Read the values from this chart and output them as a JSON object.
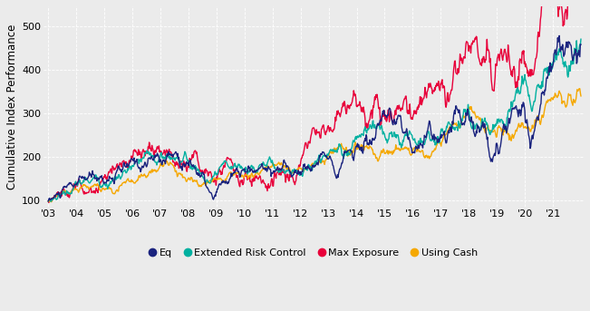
{
  "ylabel": "Cumulative Index Performance",
  "ylim": [
    85,
    545
  ],
  "xlim": [
    2002.83,
    2022.1
  ],
  "xtick_years": [
    "'03",
    "'04",
    "'05",
    "'06",
    "'07",
    "'08",
    "'09",
    "'10",
    "'11",
    "'12",
    "'13",
    "'14",
    "'15",
    "'16",
    "'17",
    "'18",
    "'19",
    "'20",
    "'21"
  ],
  "xtick_positions": [
    2003,
    2004,
    2005,
    2006,
    2007,
    2008,
    2009,
    2010,
    2011,
    2012,
    2013,
    2014,
    2015,
    2016,
    2017,
    2018,
    2019,
    2020,
    2021
  ],
  "yticks": [
    100,
    200,
    300,
    400,
    500
  ],
  "colors": {
    "Eq": "#1a237e",
    "Extended Risk Control": "#00b0a0",
    "Max Exposure": "#e8003a",
    "Using Cash": "#f5a800"
  },
  "background_color": "#ebebeb",
  "grid_color": "#ffffff",
  "linewidth": 1.0,
  "legend_fontsize": 8.0,
  "ylabel_fontsize": 8.5,
  "tick_fontsize": 8.0
}
